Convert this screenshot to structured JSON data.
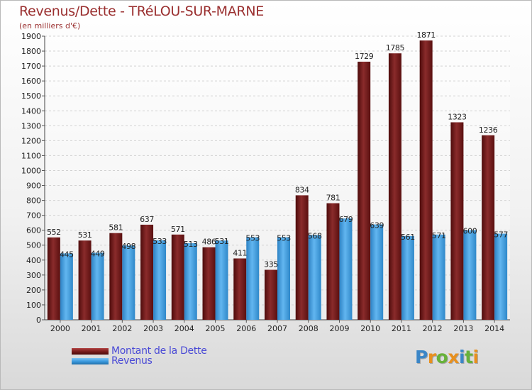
{
  "title": "Revenus/Dette - TRéLOU-SUR-MARNE",
  "subtitle": "(en milliers d'€)",
  "logo": {
    "letters": [
      "P",
      "r",
      "o",
      "x",
      "i",
      "t",
      "i"
    ],
    "colors": [
      "#3b86c7",
      "#e8901e",
      "#67b23a",
      "#e8901e",
      "#3b86c7",
      "#67b23a",
      "#e8901e"
    ]
  },
  "colors": {
    "debt": "#7a1d1d",
    "revenue": "#3d9bdf"
  },
  "chart_data": {
    "type": "bar",
    "title": "Revenus/Dette - TRéLOU-SUR-MARNE",
    "ylabel": "(en milliers d'€)",
    "xlabel": "",
    "categories": [
      "2000",
      "2001",
      "2002",
      "2003",
      "2004",
      "2005",
      "2006",
      "2007",
      "2008",
      "2009",
      "2010",
      "2011",
      "2012",
      "2013",
      "2014"
    ],
    "series": [
      {
        "name": "Montant de la Dette",
        "values": [
          552,
          531,
          581,
          637,
          571,
          486,
          411,
          335,
          834,
          781,
          1729,
          1785,
          1871,
          1323,
          1236
        ]
      },
      {
        "name": "Revenus",
        "values": [
          445,
          449,
          498,
          533,
          513,
          531,
          553,
          553,
          568,
          679,
          639,
          561,
          571,
          600,
          577
        ]
      }
    ],
    "ylim": [
      0,
      1900
    ],
    "ytick_step": 100,
    "grid": true,
    "legend": "bottom-left"
  }
}
